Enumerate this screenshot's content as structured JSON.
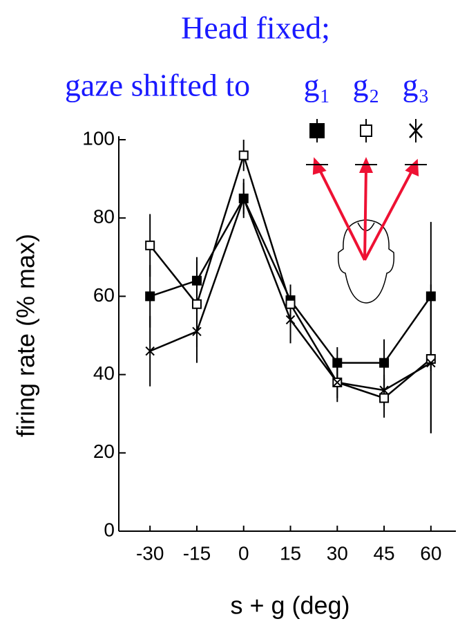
{
  "chart_data": {
    "type": "line",
    "title": "Head fixed;",
    "subtitle": "gaze shifted to",
    "x_label": "s + g (deg)",
    "y_label": "firing rate (% max)",
    "x": [
      -30,
      -15,
      0,
      15,
      30,
      45,
      60
    ],
    "xlim": [
      -40,
      68
    ],
    "ylim": [
      0,
      100
    ],
    "xticks": [
      -30,
      -15,
      0,
      15,
      30,
      45,
      60
    ],
    "yticks": [
      0,
      20,
      40,
      60,
      80,
      100
    ],
    "series": [
      {
        "name": "g₁",
        "marker": "filled-square",
        "color": "#000000",
        "values": [
          60,
          64,
          85,
          59,
          43,
          43,
          60
        ],
        "errors": [
          8,
          6,
          4,
          4,
          4,
          6,
          19
        ]
      },
      {
        "name": "g₂",
        "marker": "open-square",
        "color": "#000000",
        "values": [
          73,
          58,
          96,
          58,
          38,
          34,
          44
        ],
        "errors": [
          8,
          11,
          4,
          4,
          5,
          5,
          19
        ]
      },
      {
        "name": "g₃",
        "marker": "x",
        "color": "#000000",
        "values": [
          46,
          51,
          85,
          54,
          38,
          36,
          43
        ],
        "errors": [
          9,
          8,
          5,
          6,
          4,
          4,
          18
        ]
      }
    ]
  }
}
